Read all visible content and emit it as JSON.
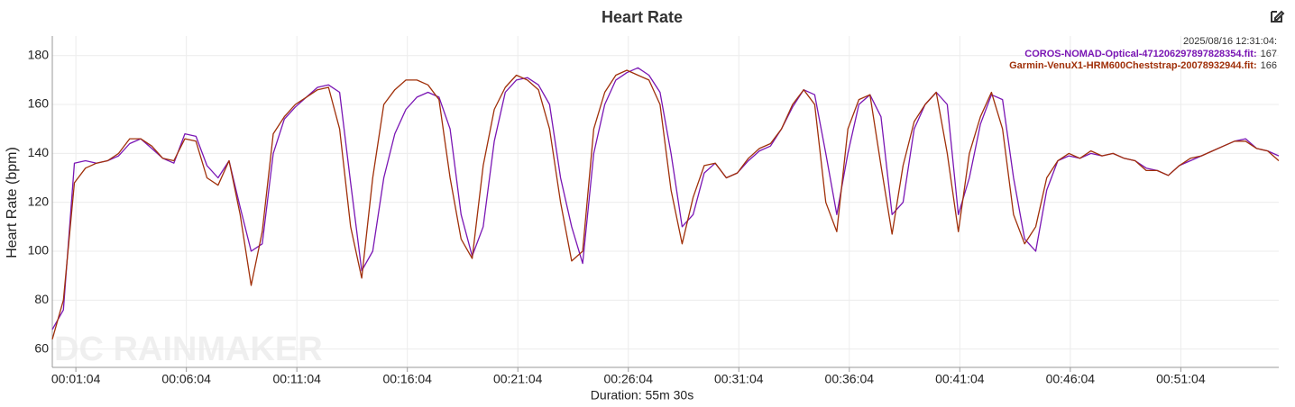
{
  "chart_data": {
    "type": "line",
    "title": "Heart Rate",
    "xlabel": "Duration: 55m 30s",
    "ylabel": "Heart Rate (bpm)",
    "watermark": "DC RAINMAKER",
    "tooltip": {
      "time": "2025/08/16 12:31:04:",
      "items": [
        {
          "label": "COROS-NOMAD-Optical-471206297897828354.fit:",
          "value": 167,
          "color": "#7a16b4"
        },
        {
          "label": "Garmin-VenuX1-HRM600Cheststrap-20078932944.fit:",
          "value": 166,
          "color": "#a0300a"
        }
      ]
    },
    "xlim": [
      0,
      3330
    ],
    "ylim": [
      52.5,
      188
    ],
    "xticks": [
      {
        "value": 64,
        "label": "00:01:04"
      },
      {
        "value": 364,
        "label": "00:06:04"
      },
      {
        "value": 664,
        "label": "00:11:04"
      },
      {
        "value": 964,
        "label": "00:16:04"
      },
      {
        "value": 1264,
        "label": "00:21:04"
      },
      {
        "value": 1564,
        "label": "00:26:04"
      },
      {
        "value": 1864,
        "label": "00:31:04"
      },
      {
        "value": 2164,
        "label": "00:36:04"
      },
      {
        "value": 2464,
        "label": "00:41:04"
      },
      {
        "value": 2764,
        "label": "00:46:04"
      },
      {
        "value": 3064,
        "label": "00:51:04"
      }
    ],
    "yticks": [
      60,
      80,
      100,
      120,
      140,
      160,
      180
    ],
    "grid": true,
    "x": [
      0,
      30,
      60,
      90,
      120,
      150,
      180,
      210,
      240,
      270,
      300,
      330,
      360,
      390,
      420,
      450,
      480,
      510,
      540,
      570,
      600,
      630,
      660,
      690,
      720,
      750,
      780,
      810,
      840,
      870,
      900,
      930,
      960,
      990,
      1020,
      1050,
      1080,
      1110,
      1140,
      1170,
      1200,
      1230,
      1260,
      1290,
      1320,
      1350,
      1380,
      1410,
      1440,
      1470,
      1500,
      1530,
      1560,
      1590,
      1620,
      1650,
      1680,
      1710,
      1740,
      1770,
      1800,
      1830,
      1860,
      1890,
      1920,
      1950,
      1980,
      2010,
      2040,
      2070,
      2100,
      2130,
      2160,
      2190,
      2220,
      2250,
      2280,
      2310,
      2340,
      2370,
      2400,
      2430,
      2460,
      2490,
      2520,
      2550,
      2580,
      2610,
      2640,
      2670,
      2700,
      2730,
      2760,
      2790,
      2820,
      2850,
      2880,
      2910,
      2940,
      2970,
      3000,
      3030,
      3060,
      3090,
      3120,
      3150,
      3180,
      3210,
      3240,
      3270,
      3300,
      3330
    ],
    "series": [
      {
        "name": "COROS-NOMAD-Optical-471206297897828354.fit",
        "color": "#7a16b4",
        "values": [
          68,
          76,
          136,
          137,
          136,
          137,
          139,
          144,
          146,
          142,
          138,
          136,
          148,
          147,
          135,
          130,
          137,
          118,
          100,
          103,
          140,
          154,
          159,
          163,
          167,
          168,
          165,
          128,
          92,
          100,
          130,
          148,
          158,
          163,
          165,
          163,
          150,
          115,
          98,
          110,
          145,
          165,
          170,
          171,
          168,
          160,
          130,
          110,
          95,
          140,
          160,
          170,
          173,
          175,
          172,
          165,
          140,
          110,
          115,
          132,
          136,
          130,
          132,
          137,
          141,
          143,
          150,
          159,
          166,
          164,
          140,
          115,
          140,
          160,
          164,
          155,
          115,
          120,
          150,
          160,
          165,
          160,
          115,
          130,
          152,
          164,
          162,
          130,
          105,
          100,
          125,
          137,
          139,
          138,
          140,
          139,
          140,
          138,
          137,
          134,
          133,
          131,
          135,
          137,
          139,
          141,
          143,
          145,
          146,
          142,
          141,
          139
        ]
      },
      {
        "name": "Garmin-VenuX1-HRM600Cheststrap-20078932944.fit",
        "color": "#a0300a",
        "values": [
          64,
          80,
          128,
          134,
          136,
          137,
          140,
          146,
          146,
          143,
          138,
          137,
          146,
          145,
          130,
          127,
          137,
          115,
          86,
          108,
          148,
          155,
          160,
          163,
          166,
          167,
          150,
          110,
          89,
          130,
          160,
          166,
          170,
          170,
          168,
          162,
          130,
          105,
          97,
          135,
          158,
          167,
          172,
          170,
          166,
          150,
          120,
          96,
          100,
          150,
          165,
          172,
          174,
          172,
          170,
          160,
          125,
          103,
          122,
          135,
          136,
          130,
          132,
          138,
          142,
          144,
          150,
          160,
          166,
          160,
          120,
          108,
          150,
          162,
          164,
          135,
          107,
          135,
          153,
          160,
          165,
          140,
          108,
          140,
          155,
          165,
          150,
          115,
          103,
          110,
          130,
          137,
          140,
          138,
          141,
          139,
          140,
          138,
          137,
          133,
          133,
          131,
          135,
          138,
          139,
          141,
          143,
          145,
          145,
          142,
          141,
          137
        ]
      }
    ]
  }
}
